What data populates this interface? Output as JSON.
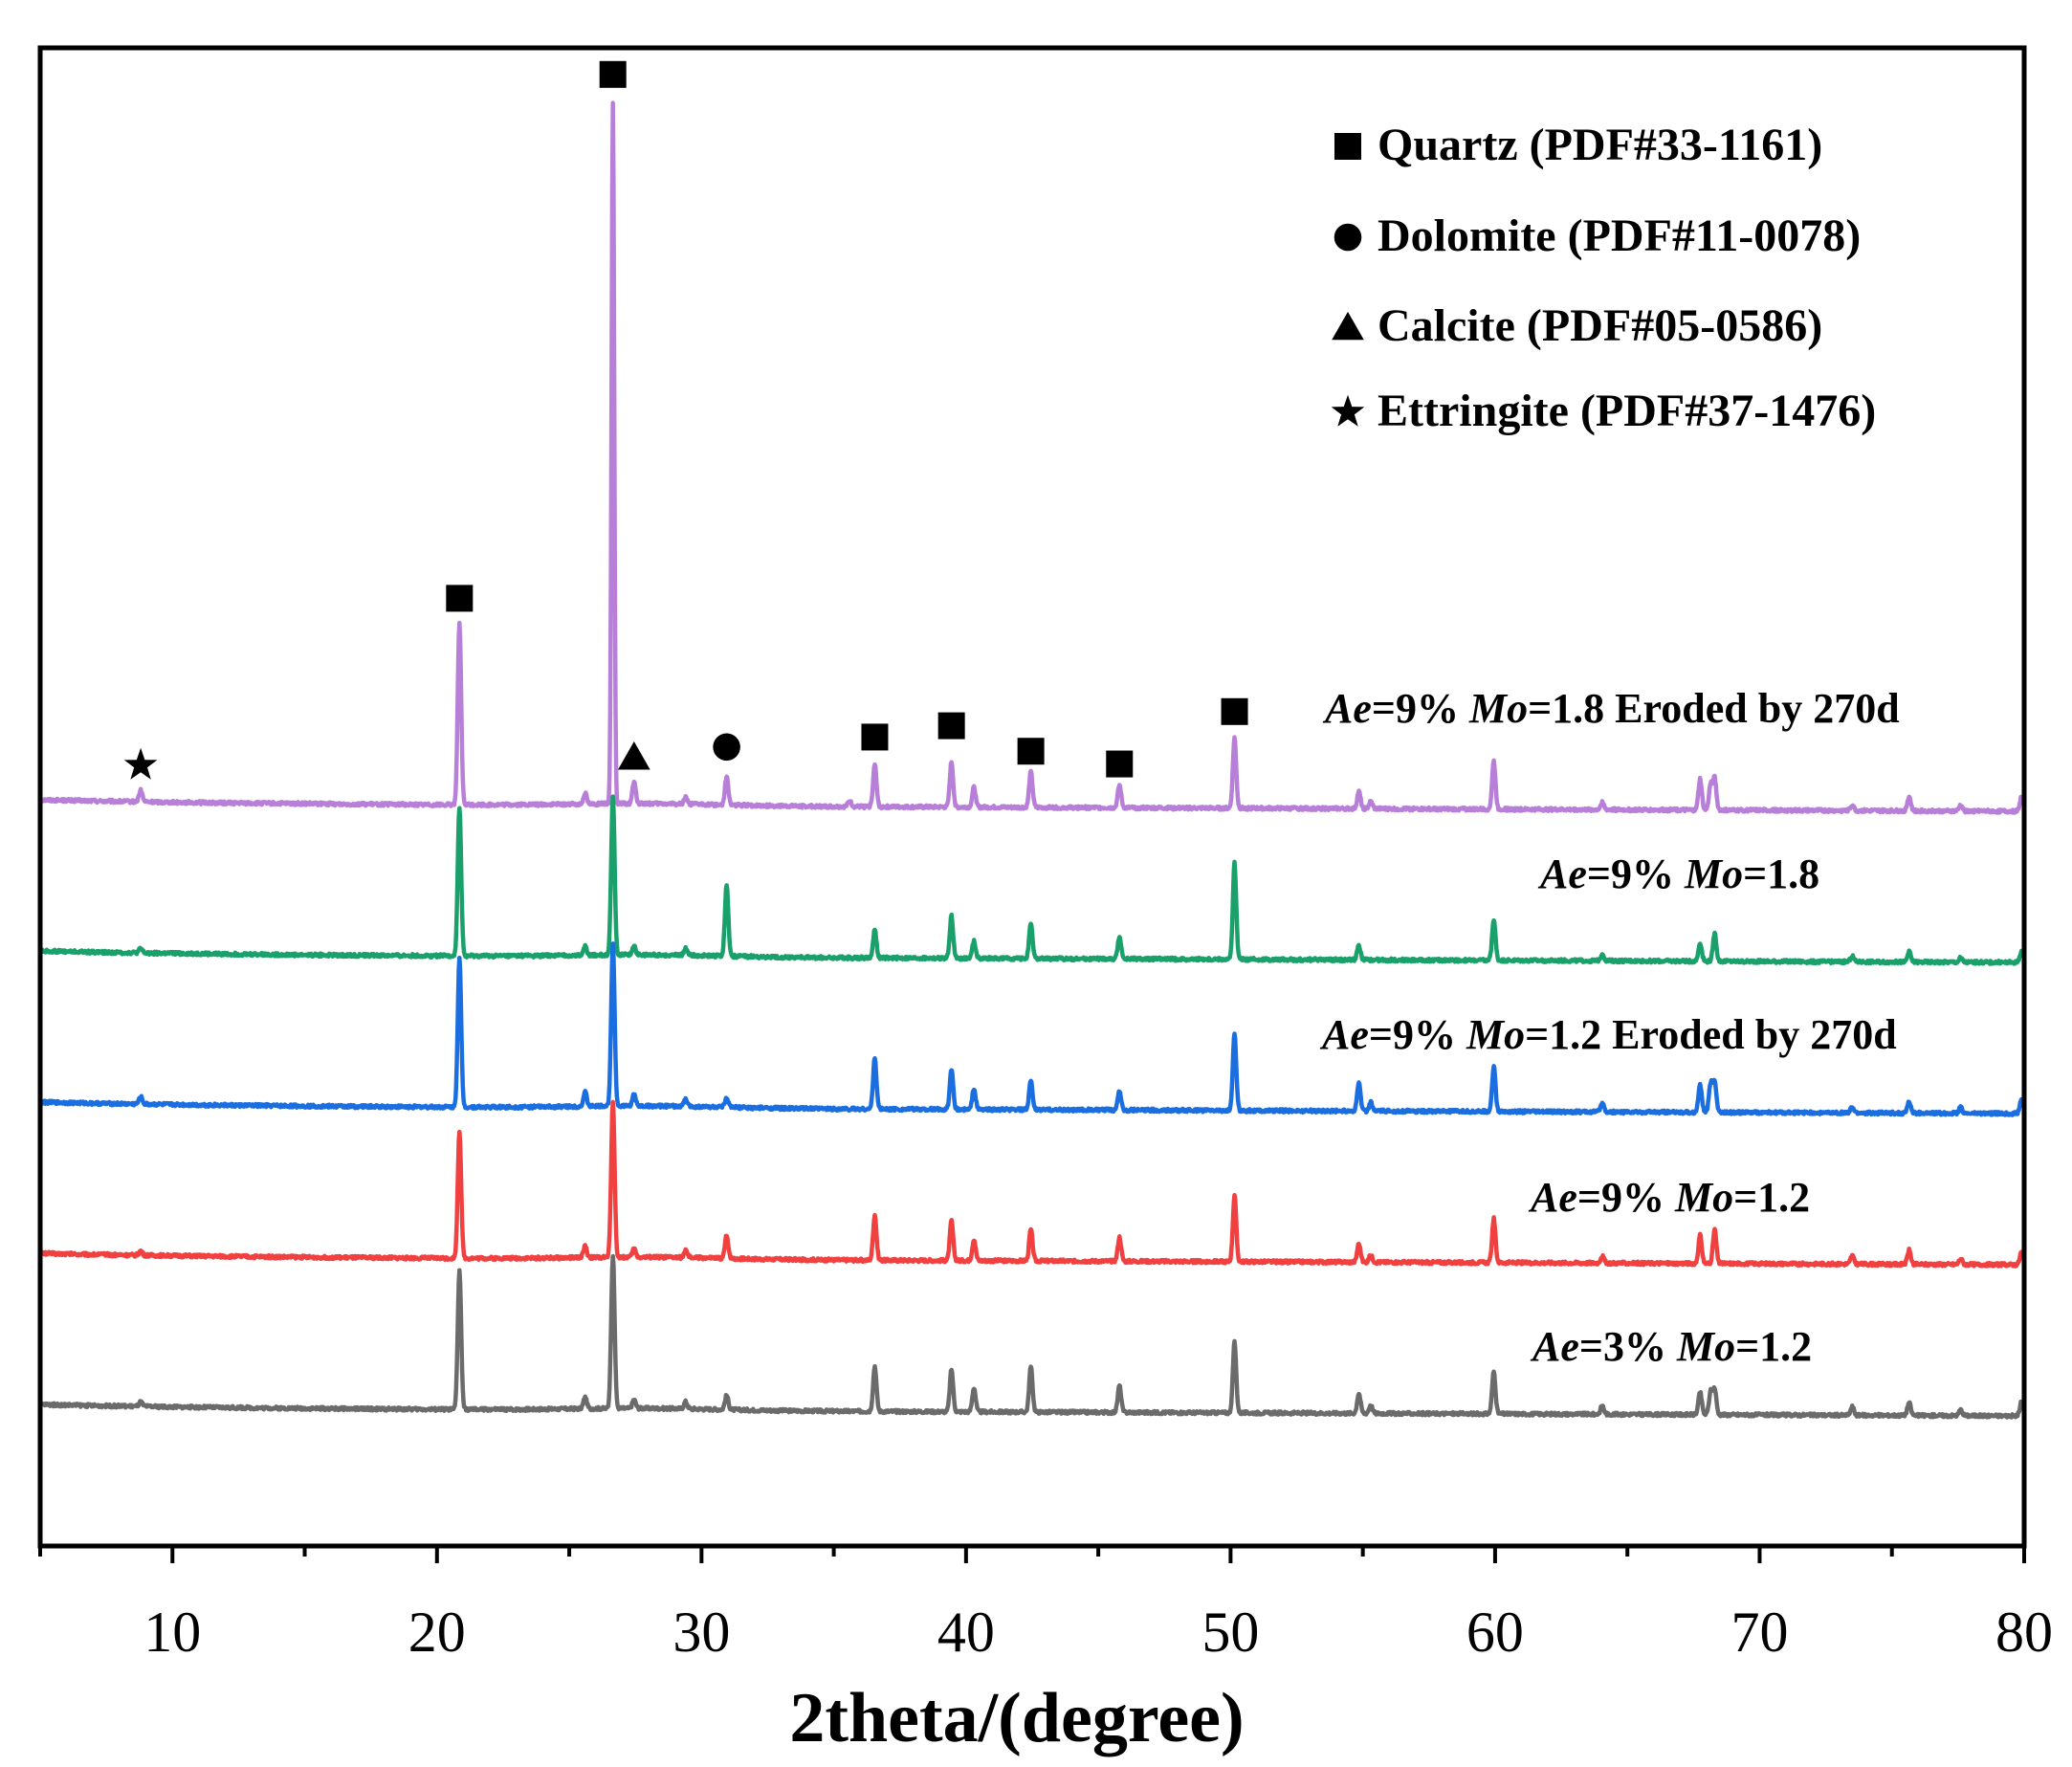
{
  "chart_data": {
    "type": "line",
    "title": "",
    "xlabel": "2theta/(degree)",
    "ylabel": "",
    "xlim": [
      5,
      80
    ],
    "x_ticks": [
      10,
      20,
      30,
      40,
      50,
      60,
      70,
      80
    ],
    "y_ticks_shown": false,
    "legend_position": "top-right",
    "legend": [
      {
        "marker": "square",
        "label": "Quartz (PDF#33-1161)"
      },
      {
        "marker": "circle",
        "label": "Dolomite (PDF#11-0078)"
      },
      {
        "marker": "triangle",
        "label": "Calcite (PDF#05-0586)"
      },
      {
        "marker": "star",
        "label": "Ettringite (PDF#37-1476)"
      }
    ],
    "series": [
      {
        "name": "Ae=9% Mo=1.8 Eroded by 270d",
        "label_parts": [
          {
            "text": "Ae",
            "italic": true
          },
          {
            "text": "=9% ",
            "italic": false
          },
          {
            "text": "Mo",
            "italic": true
          },
          {
            "text": "=1.8  Eroded by 270d",
            "italic": false
          }
        ],
        "color": "#b87fd8",
        "offset": 4,
        "peaks": [
          {
            "x": 8.8,
            "h": 0.08
          },
          {
            "x": 20.85,
            "h": 1.28
          },
          {
            "x": 25.6,
            "h": 0.08
          },
          {
            "x": 26.65,
            "h": 4.95
          },
          {
            "x": 27.45,
            "h": 0.15
          },
          {
            "x": 29.4,
            "h": 0.05
          },
          {
            "x": 30.95,
            "h": 0.2
          },
          {
            "x": 35.6,
            "h": 0.04
          },
          {
            "x": 36.55,
            "h": 0.3
          },
          {
            "x": 39.45,
            "h": 0.32
          },
          {
            "x": 40.3,
            "h": 0.14
          },
          {
            "x": 42.45,
            "h": 0.25
          },
          {
            "x": 45.8,
            "h": 0.16
          },
          {
            "x": 50.15,
            "h": 0.5
          },
          {
            "x": 54.85,
            "h": 0.12
          },
          {
            "x": 55.3,
            "h": 0.05
          },
          {
            "x": 59.95,
            "h": 0.34
          },
          {
            "x": 64.05,
            "h": 0.05
          },
          {
            "x": 67.75,
            "h": 0.22
          },
          {
            "x": 68.15,
            "h": 0.18
          },
          {
            "x": 68.3,
            "h": 0.22
          },
          {
            "x": 73.5,
            "h": 0.04
          },
          {
            "x": 75.65,
            "h": 0.1
          },
          {
            "x": 77.6,
            "h": 0.04
          },
          {
            "x": 79.9,
            "h": 0.1
          }
        ]
      },
      {
        "name": "Ae=9% Mo=1.8",
        "label_parts": [
          {
            "text": "Ae",
            "italic": true
          },
          {
            "text": "=9% ",
            "italic": false
          },
          {
            "text": "Mo",
            "italic": true
          },
          {
            "text": "=1.8",
            "italic": false
          }
        ],
        "color": "#1aa06a",
        "offset": 3,
        "peaks": [
          {
            "x": 8.8,
            "h": 0.03
          },
          {
            "x": 20.85,
            "h": 1.05
          },
          {
            "x": 25.6,
            "h": 0.06
          },
          {
            "x": 26.65,
            "h": 1.12
          },
          {
            "x": 27.45,
            "h": 0.06
          },
          {
            "x": 29.4,
            "h": 0.05
          },
          {
            "x": 30.95,
            "h": 0.5
          },
          {
            "x": 36.55,
            "h": 0.2
          },
          {
            "x": 39.45,
            "h": 0.3
          },
          {
            "x": 40.3,
            "h": 0.12
          },
          {
            "x": 42.45,
            "h": 0.24
          },
          {
            "x": 45.8,
            "h": 0.16
          },
          {
            "x": 50.15,
            "h": 0.68
          },
          {
            "x": 54.85,
            "h": 0.1
          },
          {
            "x": 59.95,
            "h": 0.29
          },
          {
            "x": 64.05,
            "h": 0.05
          },
          {
            "x": 67.75,
            "h": 0.13
          },
          {
            "x": 68.3,
            "h": 0.2
          },
          {
            "x": 73.5,
            "h": 0.04
          },
          {
            "x": 75.65,
            "h": 0.07
          },
          {
            "x": 77.6,
            "h": 0.03
          },
          {
            "x": 79.9,
            "h": 0.08
          }
        ]
      },
      {
        "name": "Ae=9% Mo=1.2 Eroded by 270d",
        "label_parts": [
          {
            "text": "Ae",
            "italic": true
          },
          {
            "text": "=9% ",
            "italic": false
          },
          {
            "text": "Mo",
            "italic": true
          },
          {
            "text": "=1.2  Eroded by 270d",
            "italic": false
          }
        ],
        "color": "#1a6ee0",
        "offset": 2,
        "peaks": [
          {
            "x": 8.8,
            "h": 0.05
          },
          {
            "x": 20.85,
            "h": 1.05
          },
          {
            "x": 25.6,
            "h": 0.1
          },
          {
            "x": 26.65,
            "h": 1.15
          },
          {
            "x": 27.45,
            "h": 0.08
          },
          {
            "x": 29.4,
            "h": 0.05
          },
          {
            "x": 30.95,
            "h": 0.06
          },
          {
            "x": 36.55,
            "h": 0.36
          },
          {
            "x": 39.45,
            "h": 0.28
          },
          {
            "x": 40.3,
            "h": 0.15
          },
          {
            "x": 42.45,
            "h": 0.2
          },
          {
            "x": 45.8,
            "h": 0.14
          },
          {
            "x": 50.15,
            "h": 0.55
          },
          {
            "x": 54.85,
            "h": 0.2
          },
          {
            "x": 55.3,
            "h": 0.06
          },
          {
            "x": 59.95,
            "h": 0.32
          },
          {
            "x": 64.05,
            "h": 0.06
          },
          {
            "x": 67.75,
            "h": 0.2
          },
          {
            "x": 68.15,
            "h": 0.2
          },
          {
            "x": 68.3,
            "h": 0.22
          },
          {
            "x": 73.5,
            "h": 0.04
          },
          {
            "x": 75.65,
            "h": 0.08
          },
          {
            "x": 77.6,
            "h": 0.04
          },
          {
            "x": 79.9,
            "h": 0.1
          }
        ]
      },
      {
        "name": "Ae=9% Mo=1.2",
        "label_parts": [
          {
            "text": "Ae",
            "italic": true
          },
          {
            "text": "=9% ",
            "italic": false
          },
          {
            "text": "Mo",
            "italic": true
          },
          {
            "text": "=1.2",
            "italic": false
          }
        ],
        "color": "#f04040",
        "offset": 1,
        "peaks": [
          {
            "x": 8.8,
            "h": 0.03
          },
          {
            "x": 20.85,
            "h": 0.9
          },
          {
            "x": 25.6,
            "h": 0.08
          },
          {
            "x": 26.65,
            "h": 1.1
          },
          {
            "x": 27.45,
            "h": 0.06
          },
          {
            "x": 29.4,
            "h": 0.05
          },
          {
            "x": 30.95,
            "h": 0.16
          },
          {
            "x": 36.55,
            "h": 0.32
          },
          {
            "x": 39.45,
            "h": 0.28
          },
          {
            "x": 40.3,
            "h": 0.15
          },
          {
            "x": 42.45,
            "h": 0.22
          },
          {
            "x": 45.8,
            "h": 0.17
          },
          {
            "x": 50.15,
            "h": 0.47
          },
          {
            "x": 54.85,
            "h": 0.13
          },
          {
            "x": 55.3,
            "h": 0.05
          },
          {
            "x": 59.95,
            "h": 0.31
          },
          {
            "x": 64.05,
            "h": 0.05
          },
          {
            "x": 67.75,
            "h": 0.2
          },
          {
            "x": 68.3,
            "h": 0.24
          },
          {
            "x": 73.5,
            "h": 0.06
          },
          {
            "x": 75.65,
            "h": 0.1
          },
          {
            "x": 77.6,
            "h": 0.04
          },
          {
            "x": 79.9,
            "h": 0.09
          }
        ]
      },
      {
        "name": "Ae=3% Mo=1.2",
        "label_parts": [
          {
            "text": "Ae",
            "italic": true
          },
          {
            "text": "=3% ",
            "italic": false
          },
          {
            "text": "Mo",
            "italic": true
          },
          {
            "text": "=1.2",
            "italic": false
          }
        ],
        "color": "#6b6b6b",
        "offset": 0,
        "peaks": [
          {
            "x": 8.8,
            "h": 0.03
          },
          {
            "x": 20.85,
            "h": 0.98
          },
          {
            "x": 25.6,
            "h": 0.08
          },
          {
            "x": 26.65,
            "h": 1.08
          },
          {
            "x": 27.45,
            "h": 0.06
          },
          {
            "x": 29.4,
            "h": 0.05
          },
          {
            "x": 30.95,
            "h": 0.1
          },
          {
            "x": 36.55,
            "h": 0.32
          },
          {
            "x": 39.45,
            "h": 0.3
          },
          {
            "x": 40.3,
            "h": 0.17
          },
          {
            "x": 42.45,
            "h": 0.32
          },
          {
            "x": 45.8,
            "h": 0.19
          },
          {
            "x": 50.15,
            "h": 0.5
          },
          {
            "x": 54.85,
            "h": 0.14
          },
          {
            "x": 55.3,
            "h": 0.06
          },
          {
            "x": 59.95,
            "h": 0.3
          },
          {
            "x": 64.05,
            "h": 0.06
          },
          {
            "x": 67.75,
            "h": 0.16
          },
          {
            "x": 68.15,
            "h": 0.16
          },
          {
            "x": 68.3,
            "h": 0.18
          },
          {
            "x": 73.5,
            "h": 0.06
          },
          {
            "x": 75.65,
            "h": 0.09
          },
          {
            "x": 77.6,
            "h": 0.04
          },
          {
            "x": 79.9,
            "h": 0.1
          }
        ]
      }
    ],
    "phase_markers": [
      {
        "phase": "Ettringite",
        "marker": "star",
        "x": 8.8,
        "above_h": 0.27
      },
      {
        "phase": "Quartz",
        "marker": "square",
        "x": 20.85,
        "above_h": 1.45
      },
      {
        "phase": "Quartz",
        "marker": "square",
        "x": 26.65,
        "above_h": 5.15
      },
      {
        "phase": "Calcite",
        "marker": "triangle",
        "x": 27.45,
        "above_h": 0.33
      },
      {
        "phase": "Dolomite",
        "marker": "circle",
        "x": 30.95,
        "above_h": 0.4
      },
      {
        "phase": "Quartz",
        "marker": "square",
        "x": 36.55,
        "above_h": 0.47
      },
      {
        "phase": "Quartz",
        "marker": "square",
        "x": 39.45,
        "above_h": 0.55
      },
      {
        "phase": "Quartz",
        "marker": "square",
        "x": 42.45,
        "above_h": 0.37
      },
      {
        "phase": "Quartz",
        "marker": "square",
        "x": 45.8,
        "above_h": 0.28
      },
      {
        "phase": "Quartz",
        "marker": "square",
        "x": 50.15,
        "above_h": 0.65
      }
    ]
  }
}
